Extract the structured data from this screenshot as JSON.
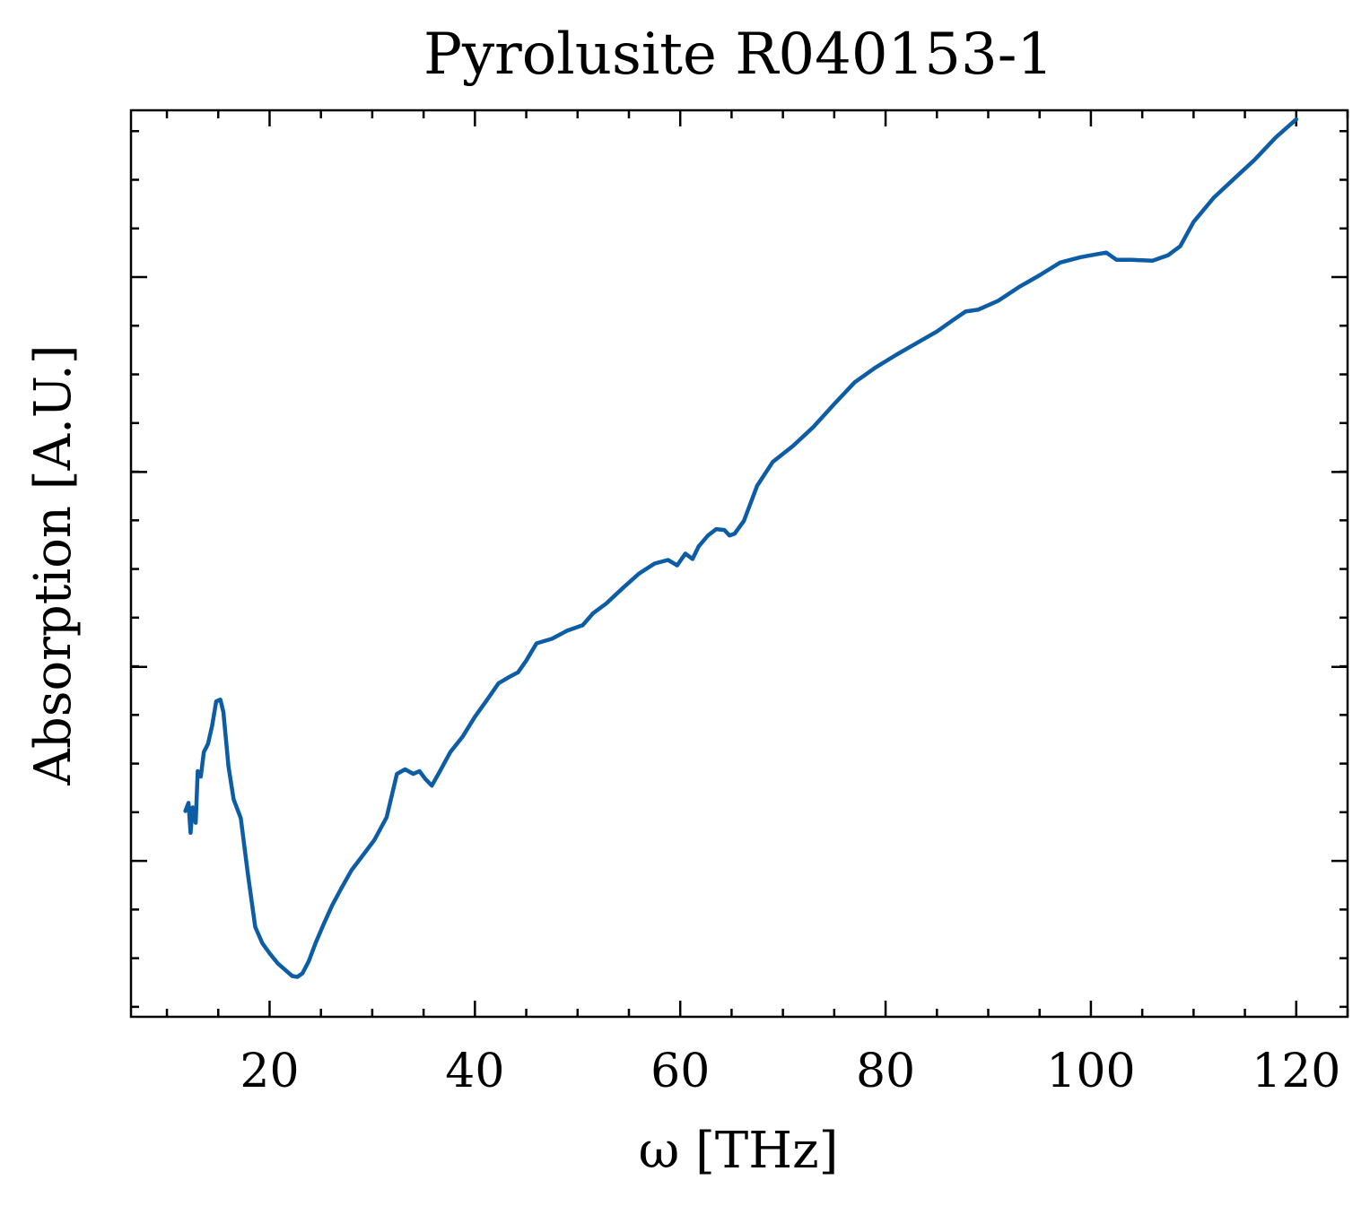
{
  "chart_data": {
    "type": "line",
    "title": "Pyrolusite R040153-1",
    "xlabel": "ω [THz]",
    "ylabel": "Absorption [A.U.]",
    "xlim": [
      6.5,
      125
    ],
    "ylim": [
      0,
      1
    ],
    "x_ticks": [
      20,
      40,
      60,
      80,
      100,
      120
    ],
    "x_tick_labels": [
      "20",
      "40",
      "60",
      "80",
      "100",
      "120"
    ],
    "y_major_ticks": [
      0.172,
      0.386,
      0.601,
      0.816
    ],
    "y_tick_labels_shown": false,
    "grid": false,
    "legend": "none",
    "line_color": "#0c5da5",
    "series": [
      {
        "x": [
          11.8,
          12.1,
          12.3,
          12.5,
          12.8,
          13.0,
          13.3,
          13.6,
          14.0,
          14.4,
          14.8,
          15.2,
          15.5,
          16.0,
          16.5,
          17.2,
          17.9,
          18.6,
          19.3,
          20.0,
          20.8,
          21.5,
          22.2,
          22.7,
          23.2,
          23.8,
          24.5,
          25.3,
          26.1,
          27.0,
          28.0,
          29.0,
          30.2,
          31.4,
          32.4,
          33.2,
          34.0,
          34.6,
          35.2,
          35.8,
          36.6,
          37.6,
          38.8,
          40.0,
          41.2,
          42.3,
          43.2,
          44.2,
          45.0,
          46.0,
          47.5,
          49.0,
          50.5,
          51.5,
          52.8,
          54.5,
          56.0,
          57.5,
          58.8,
          59.7,
          60.5,
          61.2,
          61.8,
          62.7,
          63.5,
          64.3,
          64.8,
          65.3,
          66.2,
          67.5,
          69.0,
          71.0,
          73.0,
          75.0,
          77.0,
          79.0,
          81.0,
          83.0,
          85.0,
          86.5,
          87.8,
          89.0,
          91.0,
          93.0,
          95.0,
          97.0,
          99.0,
          100.5,
          101.5,
          102.5,
          104.0,
          106.0,
          107.5,
          108.7,
          110.0,
          112.0,
          114.0,
          116.0,
          118.0,
          120.0
        ],
        "y": [
          0.227,
          0.236,
          0.203,
          0.231,
          0.214,
          0.271,
          0.265,
          0.292,
          0.301,
          0.321,
          0.348,
          0.35,
          0.336,
          0.276,
          0.24,
          0.219,
          0.156,
          0.099,
          0.081,
          0.07,
          0.059,
          0.052,
          0.045,
          0.044,
          0.048,
          0.061,
          0.082,
          0.103,
          0.123,
          0.142,
          0.162,
          0.177,
          0.195,
          0.22,
          0.268,
          0.273,
          0.268,
          0.271,
          0.262,
          0.255,
          0.271,
          0.292,
          0.309,
          0.331,
          0.35,
          0.368,
          0.374,
          0.38,
          0.393,
          0.412,
          0.417,
          0.426,
          0.432,
          0.445,
          0.456,
          0.474,
          0.489,
          0.5,
          0.504,
          0.498,
          0.511,
          0.505,
          0.519,
          0.531,
          0.538,
          0.537,
          0.531,
          0.533,
          0.547,
          0.586,
          0.612,
          0.63,
          0.651,
          0.676,
          0.7,
          0.716,
          0.73,
          0.743,
          0.756,
          0.768,
          0.778,
          0.78,
          0.79,
          0.805,
          0.818,
          0.832,
          0.838,
          0.841,
          0.843,
          0.835,
          0.835,
          0.834,
          0.84,
          0.85,
          0.877,
          0.904,
          0.925,
          0.946,
          0.97,
          0.99
        ]
      }
    ]
  }
}
